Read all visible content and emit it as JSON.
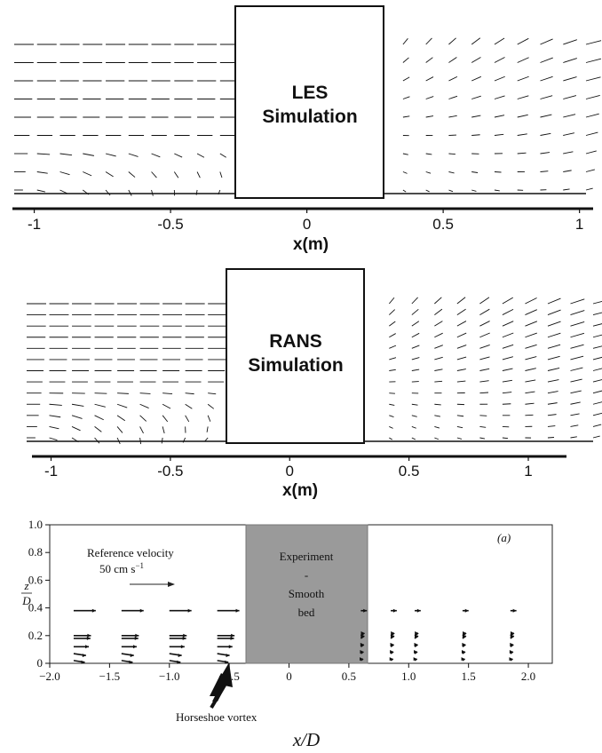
{
  "chart_data": [
    {
      "type": "vector-field",
      "panel": "LES",
      "block_label_lines": [
        "LES",
        "Simulation"
      ],
      "xlabel": "x(m)",
      "ylabel": "",
      "xlim": [
        -1.08,
        1.05
      ],
      "xticks": [
        -1,
        -0.5,
        0,
        0.5,
        1
      ],
      "xtick_labels": [
        "-1",
        "-0.5",
        "0",
        "0.5",
        "1"
      ],
      "obstacle_x": [
        -0.28,
        0.27
      ]
    },
    {
      "type": "vector-field",
      "panel": "RANS",
      "block_label_lines": [
        "RANS",
        "Simulation"
      ],
      "xlabel": "x(m)",
      "ylabel": "",
      "xlim": [
        -1.08,
        1.16
      ],
      "xticks": [
        -1,
        -0.5,
        0,
        0.5,
        1
      ],
      "xtick_labels": [
        "-1",
        "-0.5",
        "0",
        "0.5",
        "1"
      ],
      "obstacle_x": [
        -0.3,
        0.3
      ]
    },
    {
      "type": "vector-field",
      "panel": "Experiment",
      "block_label_lines": [
        "Experiment",
        "-",
        "Smooth",
        "bed"
      ],
      "panel_tag": "(a)",
      "xlabel": "x/D",
      "ylabel_num": "z",
      "ylabel_den": "D",
      "xlim": [
        -2.0,
        2.2
      ],
      "ylim": [
        0,
        1.0
      ],
      "xticks": [
        -2.0,
        -1.5,
        -1.0,
        -0.5,
        0,
        0.5,
        1.0,
        1.5,
        2.0
      ],
      "xtick_labels": [
        "−2.0",
        "−1.5",
        "−1.0",
        "−0.5",
        "0",
        "0.5",
        "1.0",
        "1.5",
        "2.0"
      ],
      "yticks": [
        0,
        0.2,
        0.4,
        0.6,
        0.8,
        1.0
      ],
      "ytick_labels": [
        "0",
        "0.2",
        "0.4",
        "0.6",
        "0.8",
        "1.0"
      ],
      "obstacle_x": [
        -0.5,
        0.5
      ],
      "reference_label": "Reference velocity",
      "reference_value": "50 cm s",
      "reference_exp": "−1",
      "annotation": "Horseshoe vortex",
      "profile_x": [
        -1.8,
        -1.4,
        -1.0,
        -0.6,
        0.6,
        0.85,
        1.05,
        1.45,
        1.85
      ],
      "profile_z": [
        0.02,
        0.07,
        0.12,
        0.18,
        0.2,
        0.38
      ]
    }
  ]
}
